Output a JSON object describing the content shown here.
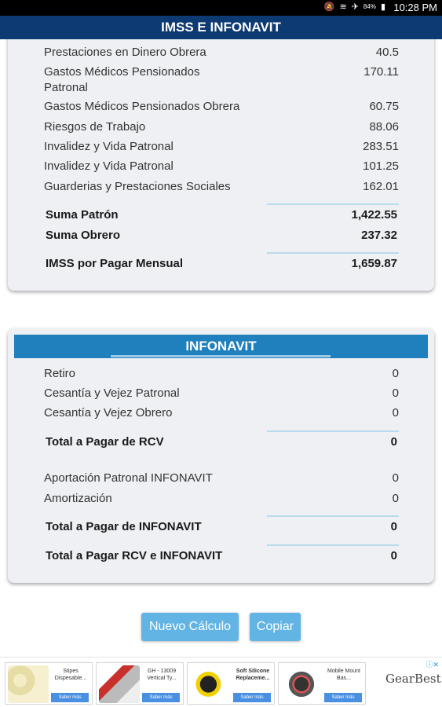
{
  "status_bar": {
    "time": "10:28 PM",
    "battery": "84%",
    "icons": [
      "mute-icon",
      "wifi-icon",
      "airplane-icon",
      "battery-icon"
    ]
  },
  "header": {
    "title": "IMSS E INFONAVIT"
  },
  "imss": {
    "rows": [
      {
        "label": "Prestaciones en Dinero Obrera",
        "value": "40.5"
      },
      {
        "label": "Gastos Médicos Pensionados Patronal",
        "value": "170.11"
      },
      {
        "label": "Gastos Médicos Pensionados Obrera",
        "value": "60.75"
      },
      {
        "label": "Riesgos de Trabajo",
        "value": "88.06"
      },
      {
        "label": "Invalidez y Vida Patronal",
        "value": "283.51"
      },
      {
        "label": "Invalidez y Vida Patronal",
        "value": "101.25"
      },
      {
        "label": "Guarderias y Prestaciones Sociales",
        "value": "162.01"
      }
    ],
    "suma_patron": {
      "label": "Suma Patrón",
      "value": "1,422.55"
    },
    "suma_obrero": {
      "label": "Suma Obrero",
      "value": "237.32"
    },
    "imss_mensual": {
      "label": "IMSS por Pagar Mensual",
      "value": "1,659.87"
    }
  },
  "infonavit": {
    "title": "INFONAVIT",
    "rows": [
      {
        "label": "Retiro",
        "value": "0"
      },
      {
        "label": "Cesantía y Vejez Patronal",
        "value": "0"
      },
      {
        "label": "Cesantía y Vejez Obrero",
        "value": "0"
      }
    ],
    "total_rcv": {
      "label": "Total a Pagar de RCV",
      "value": "0"
    },
    "rows2": [
      {
        "label": "Aportación Patronal INFONAVIT",
        "value": "0"
      },
      {
        "label": "Amortización",
        "value": "0"
      }
    ],
    "total_infonavit": {
      "label": "Total a Pagar de INFONAVIT",
      "value": "0"
    },
    "total_rcv_infonavit": {
      "label": "Total a Pagar RCV e INFONAVIT",
      "value": "0"
    }
  },
  "buttons": {
    "nuevo": "Nuevo Cálculo",
    "copiar": "Copiar"
  },
  "ads": {
    "items": [
      {
        "text": "Stipes Dispesable...",
        "cta": "Saber más"
      },
      {
        "text": "GH - 13009 Vertical Ty...",
        "cta": "Saber más"
      },
      {
        "text": "Soft Silicone Replaceme...",
        "cta": "Saber más"
      },
      {
        "text": "Mobile Mount Bas...",
        "cta": "Saber más"
      }
    ],
    "brand": "GearBest",
    "choices_icon": "ad-choices-icon"
  }
}
